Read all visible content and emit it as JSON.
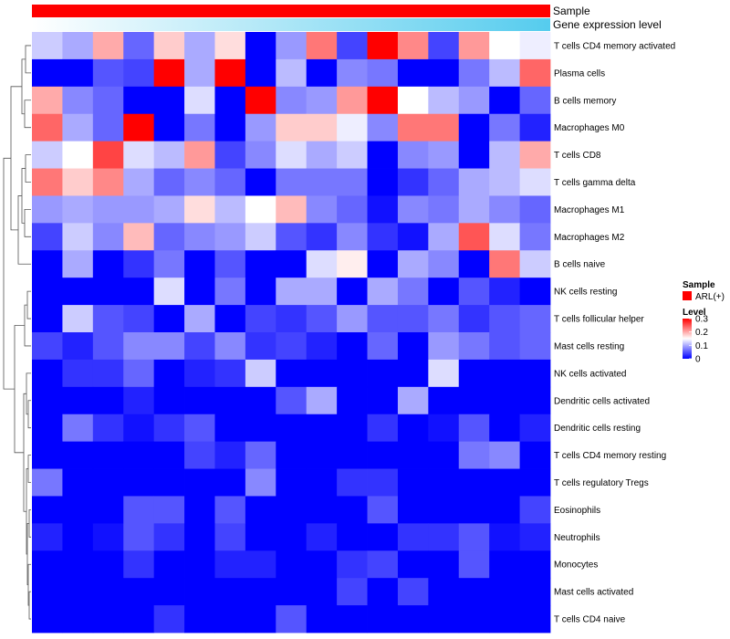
{
  "chart_data": {
    "type": "heatmap",
    "annotation_rows": [
      {
        "label": "Sample",
        "color": "#ff0000"
      },
      {
        "label": "Gene expression level",
        "gradient": [
          "#ffffff",
          "#55ccee"
        ]
      }
    ],
    "rows": [
      "T cells CD4 memory activated",
      "Plasma cells",
      "B cells memory",
      "Macrophages M0",
      "T cells CD8",
      "T cells gamma delta",
      "Macrophages M1",
      "Macrophages M2",
      "B cells naive",
      "NK cells resting",
      "T cells follicular helper",
      "Mast cells resting",
      "NK cells activated",
      "Dendritic cells activated",
      "Dendritic cells resting",
      "T cells CD4 memory resting",
      "T cells regulatory  Tregs",
      "Eosinophils",
      "Neutrophils",
      "Monocytes",
      "Mast cells activated",
      "T cells CD4 naive"
    ],
    "values": [
      [
        0.12,
        0.1,
        0.2,
        0.06,
        0.18,
        0.1,
        0.17,
        0.0,
        0.09,
        0.23,
        0.04,
        0.3,
        0.22,
        0.04,
        0.21,
        0.15,
        0.14
      ],
      [
        0.0,
        0.0,
        0.05,
        0.04,
        0.3,
        0.1,
        0.3,
        0.0,
        0.11,
        0.0,
        0.08,
        0.07,
        0.0,
        0.0,
        0.07,
        0.11,
        0.24
      ],
      [
        0.2,
        0.08,
        0.06,
        0.0,
        0.0,
        0.13,
        0.0,
        0.3,
        0.08,
        0.09,
        0.21,
        0.3,
        0.15,
        0.11,
        0.09,
        0.0,
        0.06
      ],
      [
        0.24,
        0.1,
        0.06,
        0.3,
        0.0,
        0.07,
        0.0,
        0.09,
        0.18,
        0.18,
        0.14,
        0.08,
        0.23,
        0.23,
        0.0,
        0.07,
        0.02
      ],
      [
        0.12,
        0.15,
        0.26,
        0.13,
        0.11,
        0.21,
        0.04,
        0.08,
        0.13,
        0.1,
        0.12,
        0.0,
        0.08,
        0.09,
        0.0,
        0.11,
        0.2
      ],
      [
        0.23,
        0.18,
        0.22,
        0.1,
        0.06,
        0.08,
        0.06,
        0.0,
        0.07,
        0.07,
        0.07,
        0.0,
        0.03,
        0.06,
        0.1,
        0.11,
        0.13
      ],
      [
        0.09,
        0.1,
        0.09,
        0.09,
        0.1,
        0.17,
        0.11,
        0.15,
        0.19,
        0.08,
        0.06,
        0.01,
        0.08,
        0.07,
        0.1,
        0.08,
        0.06
      ],
      [
        0.04,
        0.12,
        0.08,
        0.19,
        0.06,
        0.08,
        0.09,
        0.12,
        0.05,
        0.03,
        0.08,
        0.03,
        0.01,
        0.1,
        0.25,
        0.13,
        0.07
      ],
      [
        0.0,
        0.1,
        0.0,
        0.03,
        0.07,
        0.0,
        0.05,
        0.0,
        0.0,
        0.13,
        0.16,
        0.0,
        0.1,
        0.08,
        0.0,
        0.23,
        0.12
      ],
      [
        0.0,
        0.0,
        0.0,
        0.0,
        0.13,
        0.0,
        0.07,
        0.0,
        0.1,
        0.1,
        0.0,
        0.1,
        0.07,
        0.0,
        0.05,
        0.02,
        0.0
      ],
      [
        0.0,
        0.12,
        0.05,
        0.04,
        0.0,
        0.1,
        0.0,
        0.04,
        0.03,
        0.05,
        0.09,
        0.05,
        0.05,
        0.07,
        0.03,
        0.05,
        0.06
      ],
      [
        0.04,
        0.02,
        0.05,
        0.08,
        0.08,
        0.04,
        0.08,
        0.03,
        0.04,
        0.02,
        0.0,
        0.06,
        0.0,
        0.09,
        0.07,
        0.05,
        0.06
      ],
      [
        0.0,
        0.03,
        0.03,
        0.06,
        0.0,
        0.02,
        0.03,
        0.12,
        0.0,
        0.0,
        0.0,
        0.0,
        0.0,
        0.13,
        0.0,
        0.0,
        0.0
      ],
      [
        0.0,
        0.0,
        0.0,
        0.02,
        0.0,
        0.0,
        0.0,
        0.0,
        0.05,
        0.1,
        0.0,
        0.0,
        0.1,
        0.0,
        0.0,
        0.0,
        0.0
      ],
      [
        0.0,
        0.07,
        0.03,
        0.01,
        0.03,
        0.05,
        0.0,
        0.0,
        0.0,
        0.0,
        0.0,
        0.03,
        0.0,
        0.01,
        0.05,
        0.0,
        0.02
      ],
      [
        0.0,
        0.0,
        0.0,
        0.0,
        0.0,
        0.04,
        0.02,
        0.06,
        0.0,
        0.0,
        0.0,
        0.0,
        0.0,
        0.0,
        0.07,
        0.08,
        0.0
      ],
      [
        0.07,
        0.0,
        0.0,
        0.0,
        0.0,
        0.0,
        0.0,
        0.08,
        0.0,
        0.0,
        0.03,
        0.03,
        0.0,
        0.0,
        0.0,
        0.0,
        0.0
      ],
      [
        0.0,
        0.0,
        0.0,
        0.05,
        0.05,
        0.0,
        0.05,
        0.0,
        0.0,
        0.0,
        0.0,
        0.05,
        0.0,
        0.0,
        0.0,
        0.0,
        0.04
      ],
      [
        0.02,
        0.0,
        0.01,
        0.05,
        0.03,
        0.0,
        0.04,
        0.0,
        0.0,
        0.02,
        0.0,
        0.0,
        0.03,
        0.03,
        0.05,
        0.01,
        0.02
      ],
      [
        0.0,
        0.0,
        0.0,
        0.03,
        0.0,
        0.0,
        0.02,
        0.02,
        0.0,
        0.0,
        0.03,
        0.04,
        0.0,
        0.0,
        0.05,
        0.0,
        0.0
      ],
      [
        0.0,
        0.0,
        0.0,
        0.0,
        0.0,
        0.0,
        0.0,
        0.0,
        0.0,
        0.0,
        0.04,
        0.0,
        0.04,
        0.0,
        0.0,
        0.0,
        0.0
      ],
      [
        0.0,
        0.0,
        0.0,
        0.0,
        0.03,
        0.0,
        0.0,
        0.0,
        0.05,
        0.0,
        0.0,
        0.0,
        0.0,
        0.0,
        0.0,
        0.0,
        0.0
      ]
    ],
    "color_scale": {
      "min": 0,
      "mid": 0.15,
      "max": 0.3,
      "low": "#0000ff",
      "midColor": "#ffffff",
      "high": "#ff0000"
    },
    "legend": {
      "sample_title": "Sample",
      "sample_item": "ARL(+)",
      "sample_color": "#ff0000",
      "level_title": "Level",
      "level_ticks": [
        "0.3",
        "0.2",
        "0.1",
        "0"
      ],
      "position": "right"
    }
  }
}
